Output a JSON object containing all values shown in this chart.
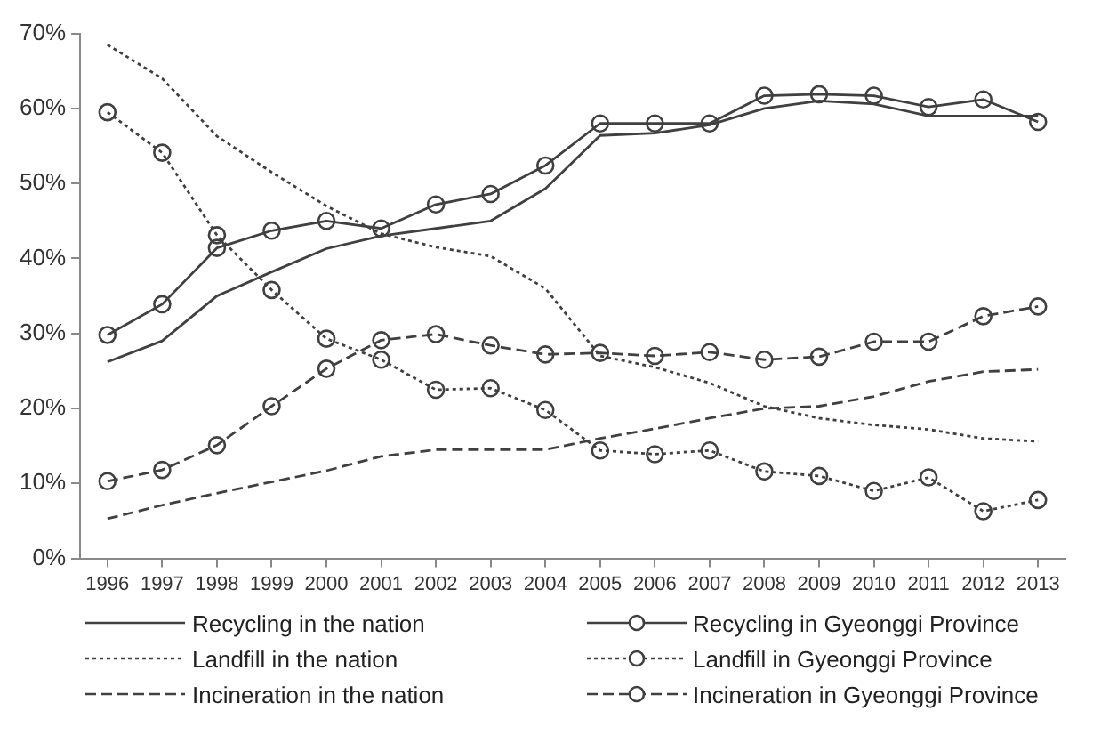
{
  "chart_data": {
    "type": "line",
    "categories": [
      "1996",
      "1997",
      "1998",
      "1999",
      "2000",
      "2001",
      "2002",
      "2003",
      "2004",
      "2005",
      "2006",
      "2007",
      "2008",
      "2009",
      "2010",
      "2011",
      "2012",
      "2013"
    ],
    "series": [
      {
        "name": "Recycling in the nation",
        "color": "#404040",
        "line_style": "solid",
        "marker": "none",
        "values": [
          26.2,
          29,
          35,
          38.2,
          41.3,
          43,
          44,
          45,
          49.3,
          56.4,
          56.7,
          57.8,
          60,
          61,
          60.6,
          59,
          59,
          59
        ]
      },
      {
        "name": "Recycling in Gyeonggi Province",
        "color": "#404040",
        "line_style": "solid",
        "marker": "circle",
        "values": [
          29.8,
          33.9,
          41.4,
          43.7,
          45,
          44,
          47.2,
          48.6,
          52.4,
          58,
          58,
          58,
          61.7,
          61.9,
          61.7,
          60.2,
          61.2,
          58.2
        ]
      },
      {
        "name": "Landfill in the nation",
        "color": "#404040",
        "line_style": "dotted",
        "marker": "none",
        "values": [
          68.5,
          64,
          56.3,
          51.5,
          47,
          43.3,
          41.5,
          40.3,
          36,
          27,
          25.5,
          23.4,
          20.3,
          18.7,
          17.8,
          17.2,
          16,
          15.6
        ]
      },
      {
        "name": "Landfill in Gyeonggi Province",
        "color": "#404040",
        "line_style": "dotted",
        "marker": "circle",
        "values": [
          59.5,
          54.1,
          43.1,
          35.8,
          29.3,
          26.5,
          22.5,
          22.7,
          19.8,
          14.4,
          13.9,
          14.4,
          11.6,
          11,
          9,
          10.8,
          6.3,
          7.8
        ]
      },
      {
        "name": "Incineration in the nation",
        "color": "#404040",
        "line_style": "dashed",
        "marker": "none",
        "values": [
          5.3,
          7.1,
          8.7,
          10.2,
          11.7,
          13.6,
          14.5,
          14.5,
          14.5,
          16,
          17.3,
          18.7,
          20,
          20.3,
          21.6,
          23.6,
          24.9,
          25.2
        ]
      },
      {
        "name": "Incineration in Gyeonggi Province",
        "color": "#404040",
        "line_style": "dashed",
        "marker": "circle",
        "values": [
          10.3,
          11.8,
          15.1,
          20.3,
          25.3,
          29.1,
          29.9,
          28.4,
          27.2,
          27.4,
          27,
          27.5,
          26.5,
          26.9,
          28.9,
          28.9,
          32.3,
          33.6
        ]
      }
    ],
    "ylim": [
      0,
      70
    ],
    "yticks": [
      {
        "value": 0,
        "label": "0%"
      },
      {
        "value": 10,
        "label": "10%"
      },
      {
        "value": 20,
        "label": "20%"
      },
      {
        "value": 30,
        "label": "30%"
      },
      {
        "value": 40,
        "label": "40%"
      },
      {
        "value": 50,
        "label": "50%"
      },
      {
        "value": 60,
        "label": "60%"
      },
      {
        "value": 70,
        "label": "70%"
      }
    ],
    "grid": false,
    "legend": "bottom"
  }
}
